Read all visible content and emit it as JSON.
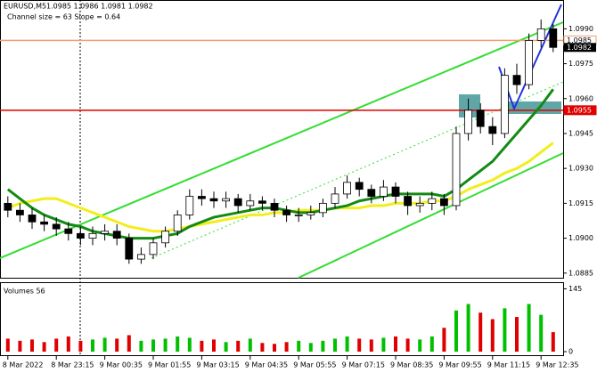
{
  "chart_data": {
    "type": "candlestick",
    "title": "EURUSD,M5",
    "ohlc_text": "1.0985 1.0986 1.0981 1.0982",
    "channel_text": "Channel size = 63 Slope = 0.64",
    "categories": [
      "8 Mar 2022",
      null,
      null,
      null,
      "8 Mar 23:15",
      null,
      null,
      null,
      "9 Mar 00:35",
      null,
      null,
      null,
      "9 Mar 01:55",
      null,
      null,
      null,
      "9 Mar 03:15",
      null,
      null,
      null,
      "9 Mar 04:35",
      null,
      null,
      null,
      "9 Mar 05:55",
      null,
      null,
      null,
      "9 Mar 07:15",
      null,
      null,
      null,
      "9 Mar 08:35",
      null,
      null,
      null,
      "9 Mar 09:55",
      null,
      null,
      null,
      "9 Mar 11:15",
      null,
      null,
      null,
      "9 Mar 12:35",
      null
    ],
    "open": [
      1.0915,
      1.0912,
      1.091,
      1.0907,
      1.0906,
      1.0904,
      1.0902,
      1.09,
      1.0902,
      1.0903,
      1.09,
      1.0891,
      1.0893,
      1.0898,
      1.0903,
      1.091,
      1.0918,
      1.0917,
      1.0916,
      1.0917,
      1.0914,
      1.0916,
      1.0915,
      1.0912,
      1.091,
      1.091,
      1.0911,
      1.0915,
      1.0919,
      1.0924,
      1.0921,
      1.0918,
      1.0922,
      1.0918,
      1.0914,
      1.0915,
      1.0917,
      1.0914,
      1.0945,
      1.0955,
      1.0948,
      1.0945,
      1.097,
      1.0966,
      1.0985,
      1.099
    ],
    "high": [
      1.0918,
      1.0915,
      1.0913,
      1.091,
      1.0909,
      1.0907,
      1.0905,
      1.0905,
      1.0906,
      1.0906,
      1.0902,
      1.0896,
      1.09,
      1.0905,
      1.0912,
      1.0921,
      1.0921,
      1.092,
      1.092,
      1.0919,
      1.0919,
      1.0918,
      1.0917,
      1.0914,
      1.0913,
      1.0914,
      1.0917,
      1.0922,
      1.0927,
      1.0926,
      1.0923,
      1.0925,
      1.0924,
      1.092,
      1.0918,
      1.092,
      1.0919,
      1.0948,
      1.096,
      1.0958,
      1.0952,
      1.0973,
      1.0975,
      1.0988,
      1.0994,
      1.0992
    ],
    "low": [
      1.0909,
      1.0907,
      1.0904,
      1.0903,
      1.0901,
      1.0899,
      1.0897,
      1.0897,
      1.0899,
      1.0897,
      1.0889,
      1.0889,
      1.0891,
      1.0896,
      1.0901,
      1.0908,
      1.0914,
      1.0913,
      1.0913,
      1.0911,
      1.0912,
      1.0912,
      1.0909,
      1.0907,
      1.0907,
      1.0908,
      1.0909,
      1.0913,
      1.0917,
      1.0918,
      1.0915,
      1.0916,
      1.0915,
      1.091,
      1.0911,
      1.0912,
      1.091,
      1.0912,
      1.0942,
      1.0945,
      1.094,
      1.0943,
      1.0962,
      1.0964,
      1.0982,
      1.098
    ],
    "close": [
      1.0912,
      1.091,
      1.0907,
      1.0906,
      1.0904,
      1.0902,
      1.09,
      1.0902,
      1.0903,
      1.09,
      1.0891,
      1.0893,
      1.0898,
      1.0903,
      1.091,
      1.0918,
      1.0917,
      1.0916,
      1.0917,
      1.0914,
      1.0916,
      1.0915,
      1.0912,
      1.091,
      1.091,
      1.0911,
      1.0915,
      1.0919,
      1.0924,
      1.0921,
      1.0918,
      1.0922,
      1.0918,
      1.0914,
      1.0915,
      1.0917,
      1.0914,
      1.0945,
      1.0955,
      1.0948,
      1.0945,
      1.097,
      1.0966,
      1.0985,
      1.099,
      1.0982
    ],
    "up_color": "#ffffff",
    "down_color": "#000000",
    "series": [
      {
        "color": "#f2ee1e",
        "values": [
          1.0913,
          1.0915,
          1.0916,
          1.0917,
          1.0917,
          1.0915,
          1.0913,
          1.0911,
          1.0909,
          1.0907,
          1.0905,
          1.0904,
          1.0903,
          1.0903,
          1.0904,
          1.0905,
          1.0906,
          1.0907,
          1.0908,
          1.0909,
          1.091,
          1.091,
          1.0911,
          1.0911,
          1.0912,
          1.0912,
          1.0912,
          1.0913,
          1.0913,
          1.0913,
          1.0914,
          1.0914,
          1.0915,
          1.0915,
          1.0915,
          1.0916,
          1.0916,
          1.0918,
          1.0921,
          1.0923,
          1.0925,
          1.0928,
          1.093,
          1.0933,
          1.0937,
          1.0941
        ]
      },
      {
        "color": "#138a13",
        "values": [
          1.0921,
          1.0917,
          1.0913,
          1.091,
          1.0908,
          1.0906,
          1.0905,
          1.0903,
          1.0902,
          1.0901,
          1.09,
          1.09,
          1.09,
          1.0901,
          1.0902,
          1.0905,
          1.0907,
          1.0909,
          1.091,
          1.0911,
          1.0912,
          1.0913,
          1.0913,
          1.0912,
          1.0911,
          1.0911,
          1.0912,
          1.0913,
          1.0914,
          1.0916,
          1.0917,
          1.0918,
          1.0919,
          1.0919,
          1.0919,
          1.0919,
          1.0918,
          1.0921,
          1.0925,
          1.0929,
          1.0933,
          1.0939,
          1.0945,
          1.0951,
          1.0957,
          1.0964
        ]
      }
    ],
    "ylim": [
      1.0883,
      1.1002
    ],
    "yticks": [
      {
        "value": 1.099,
        "label": "1.0990"
      },
      1.0975,
      {
        "value": 1.096,
        "label": "1.0960"
      },
      1.0945,
      {
        "value": 1.093,
        "label": "1.0930"
      },
      1.0915,
      {
        "value": 1.09,
        "label": "1.0900"
      },
      1.0885
    ],
    "levels": [
      {
        "value": 1.0985,
        "label": "1.0985",
        "color": "#f0a070"
      },
      {
        "value": 1.0955,
        "label": "1.0955",
        "color": "#e00000"
      }
    ],
    "last_price": {
      "value": 1.0982,
      "label": "1.0982"
    },
    "volume": {
      "title": "Volumes 56",
      "up_color": "#00c000",
      "down_color": "#e00000",
      "values": [
        30,
        25,
        28,
        22,
        30,
        35,
        25,
        28,
        32,
        30,
        38,
        25,
        28,
        30,
        35,
        32,
        25,
        28,
        22,
        25,
        30,
        20,
        18,
        22,
        25,
        20,
        25,
        30,
        35,
        30,
        28,
        32,
        35,
        30,
        28,
        35,
        55,
        95,
        110,
        90,
        75,
        100,
        80,
        110,
        85,
        45
      ],
      "ylim": [
        0,
        150
      ],
      "yticks": [
        145,
        0
      ]
    }
  }
}
